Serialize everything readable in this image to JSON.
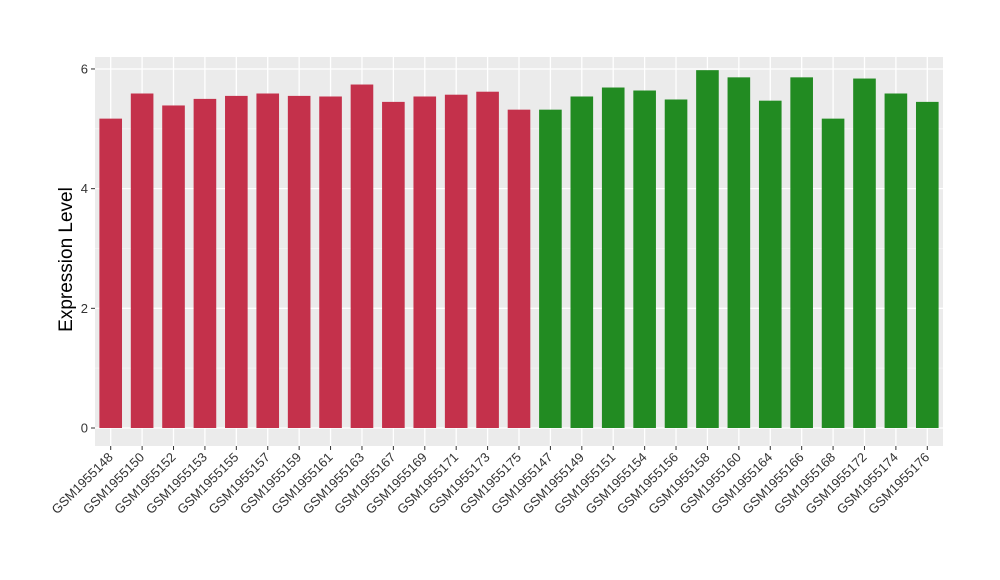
{
  "chart_data": {
    "type": "bar",
    "ylabel": "Expression Level",
    "xlabel": "",
    "title": "",
    "ylim": [
      0,
      6.2
    ],
    "yticks": [
      0,
      2,
      4,
      6
    ],
    "grid": true,
    "categories": [
      "GSM1955148",
      "GSM1955150",
      "GSM1955152",
      "GSM1955153",
      "GSM1955155",
      "GSM1955157",
      "GSM1955159",
      "GSM1955161",
      "GSM1955163",
      "GSM1955167",
      "GSM1955169",
      "GSM1955171",
      "GSM1955173",
      "GSM1955175",
      "GSM1955147",
      "GSM1955149",
      "GSM1955151",
      "GSM1955154",
      "GSM1955156",
      "GSM1955158",
      "GSM1955160",
      "GSM1955164",
      "GSM1955166",
      "GSM1955168",
      "GSM1955172",
      "GSM1955174",
      "GSM1955176"
    ],
    "values": [
      5.17,
      5.59,
      5.39,
      5.5,
      5.55,
      5.59,
      5.55,
      5.54,
      5.74,
      5.45,
      5.54,
      5.57,
      5.62,
      5.32,
      5.32,
      5.54,
      5.69,
      5.64,
      5.49,
      5.98,
      5.86,
      5.47,
      5.86,
      5.17,
      5.84,
      5.59,
      5.45
    ],
    "groups": [
      0,
      0,
      0,
      0,
      0,
      0,
      0,
      0,
      0,
      0,
      0,
      0,
      0,
      0,
      1,
      1,
      1,
      1,
      1,
      1,
      1,
      1,
      1,
      1,
      1,
      1,
      1
    ],
    "colors": [
      "#c4314b",
      "#228b22"
    ]
  }
}
